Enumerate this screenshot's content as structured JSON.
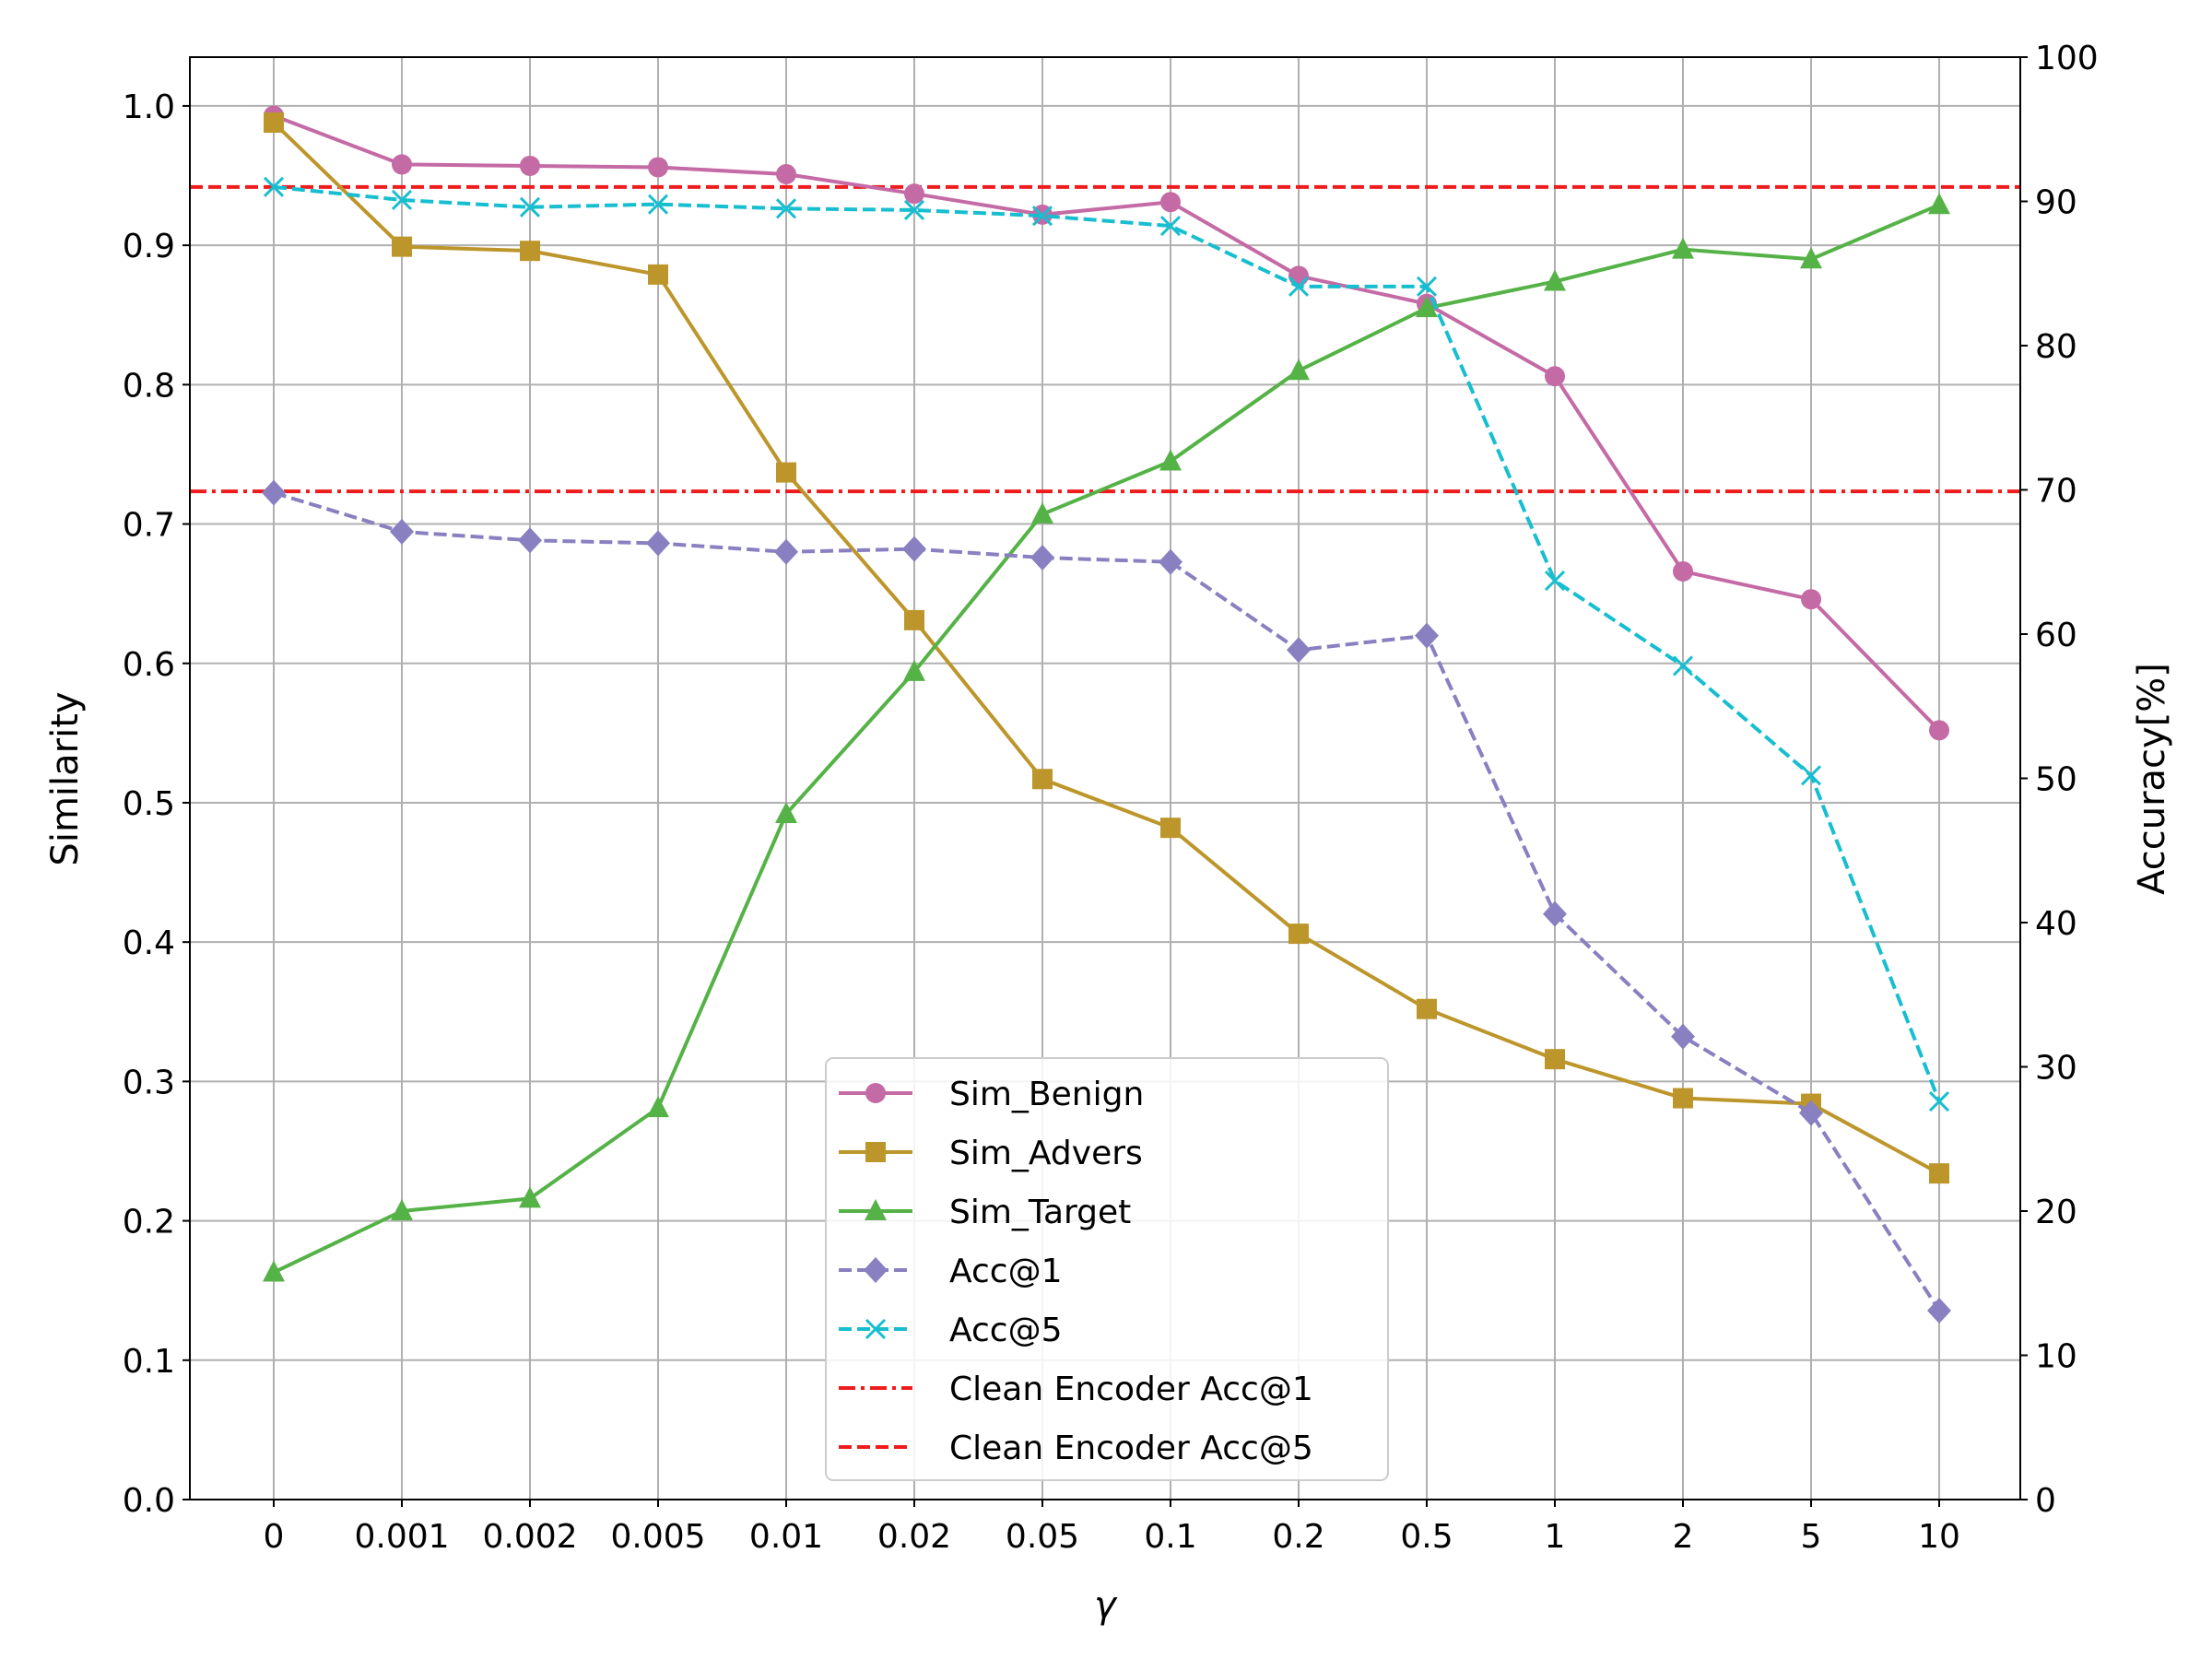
{
  "chart_data": {
    "type": "line",
    "title": "",
    "xlabel": "γ",
    "ylabel": "Similarity",
    "y2label": "Accuracy[%]",
    "categories": [
      "0",
      "0.001",
      "0.002",
      "0.005",
      "0.01",
      "0.02",
      "0.05",
      "0.1",
      "0.2",
      "0.5",
      "1",
      "2",
      "5",
      "10"
    ],
    "ylim": [
      0,
      1.035
    ],
    "yticks": [
      "0.0",
      "0.1",
      "0.2",
      "0.3",
      "0.4",
      "0.5",
      "0.6",
      "0.7",
      "0.8",
      "0.9",
      "1.0"
    ],
    "y2lim": [
      0,
      100
    ],
    "y2ticks": [
      "0",
      "10",
      "20",
      "30",
      "40",
      "50",
      "60",
      "70",
      "80",
      "90",
      "100"
    ],
    "grid": true,
    "legend_position": "bottom-center",
    "series": [
      {
        "name": "Sim_Benign",
        "axis": "left",
        "color": "#c46aa5",
        "marker": "circle",
        "dash": "solid",
        "values": [
          0.993,
          0.958,
          0.957,
          0.956,
          0.951,
          0.937,
          0.922,
          0.931,
          0.878,
          0.858,
          0.806,
          0.666,
          0.646,
          0.552
        ]
      },
      {
        "name": "Sim_Advers",
        "axis": "left",
        "color": "#bd962b",
        "marker": "square",
        "dash": "solid",
        "values": [
          0.988,
          0.899,
          0.896,
          0.879,
          0.737,
          0.631,
          0.517,
          0.482,
          0.406,
          0.352,
          0.316,
          0.288,
          0.284,
          0.234
        ]
      },
      {
        "name": "Sim_Target",
        "axis": "left",
        "color": "#55b247",
        "marker": "triangle",
        "dash": "solid",
        "values": [
          0.163,
          0.207,
          0.216,
          0.281,
          0.492,
          0.594,
          0.707,
          0.745,
          0.81,
          0.855,
          0.874,
          0.897,
          0.89,
          0.929
        ]
      },
      {
        "name": "Acc@1",
        "axis": "right",
        "color": "#8880c0",
        "marker": "diamond",
        "dash": "dashed",
        "values": [
          69.8,
          67.1,
          66.5,
          66.3,
          65.7,
          65.9,
          65.3,
          65.0,
          58.9,
          59.9,
          40.6,
          32.1,
          26.8,
          13.1
        ]
      },
      {
        "name": "Acc@5",
        "axis": "right",
        "color": "#17becf",
        "marker": "x",
        "dash": "dashed",
        "values": [
          91.0,
          90.1,
          89.6,
          89.8,
          89.5,
          89.4,
          89.0,
          88.3,
          84.1,
          84.1,
          63.7,
          57.8,
          50.2,
          27.6
        ]
      }
    ],
    "reference_lines": [
      {
        "name": "Clean Encoder Acc@1",
        "axis": "right",
        "value": 69.9,
        "color": "#ee1c1c",
        "dash": "dashdot"
      },
      {
        "name": "Clean Encoder Acc@5",
        "axis": "right",
        "value": 91.0,
        "color": "#ee1c1c",
        "dash": "dashed"
      }
    ]
  }
}
